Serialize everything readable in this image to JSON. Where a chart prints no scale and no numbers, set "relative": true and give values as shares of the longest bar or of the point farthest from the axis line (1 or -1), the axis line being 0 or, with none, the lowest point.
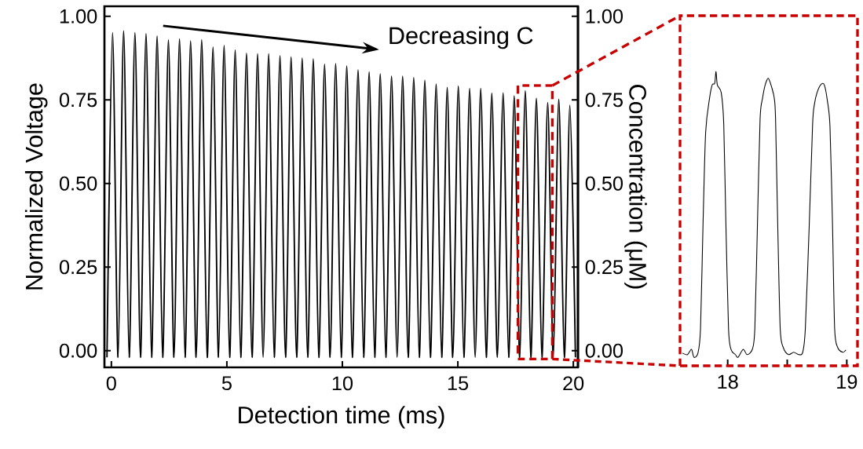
{
  "chart_data": [
    {
      "type": "line",
      "xlabel": "Detection time (ms)",
      "ylabel": "Normalized Voltage",
      "y2label": "Concentration (μM)",
      "annotations": [
        "Decreasing C"
      ],
      "xlim": [
        -0.3,
        20.2
      ],
      "ylim": [
        -0.05,
        1.03
      ],
      "y2lim": [
        -0.05,
        1.03
      ],
      "xticks": [
        0,
        5,
        10,
        15,
        20
      ],
      "yticks": [
        {
          "value": 0,
          "label": "0.00"
        },
        {
          "value": 0.25,
          "label": "0.25"
        },
        {
          "value": 0.5,
          "label": "0.50"
        },
        {
          "value": 0.75,
          "label": "0.75"
        },
        {
          "value": 1,
          "label": "1.00"
        }
      ],
      "y2ticks": [
        {
          "value": 0,
          "label": "0.00"
        },
        {
          "value": 0.25,
          "label": "0.25"
        },
        {
          "value": 0.5,
          "label": "0.50"
        },
        {
          "value": 0.75,
          "label": "0.75"
        },
        {
          "value": 1,
          "label": "1.00"
        }
      ],
      "series": [
        {
          "color": "#000000",
          "x": [
            -0.19,
            0.05,
            0.29,
            0.53,
            0.77,
            1.02,
            1.26,
            1.5,
            1.74,
            1.98,
            2.22,
            2.47,
            2.71,
            2.95,
            3.19,
            3.43,
            3.67,
            3.91,
            4.15,
            4.4,
            4.64,
            4.88,
            5.12,
            5.36,
            5.6,
            5.85,
            6.09,
            6.33,
            6.57,
            6.81,
            7.05,
            7.3,
            7.54,
            7.78,
            8.02,
            8.26,
            8.5,
            8.74,
            8.98,
            9.23,
            9.47,
            9.71,
            9.95,
            10.19,
            10.43,
            10.68,
            10.92,
            11.16,
            11.4,
            11.64,
            11.88,
            12.13,
            12.37,
            12.61,
            12.85,
            13.09,
            13.33,
            13.57,
            13.81,
            14.06,
            14.3,
            14.54,
            14.78,
            15.02,
            15.26,
            15.51,
            15.75,
            15.99,
            16.23,
            16.47,
            16.71,
            16.96,
            17.2,
            17.44,
            17.68,
            17.92,
            18.16,
            18.4,
            18.64,
            18.89,
            19.13,
            19.37,
            19.61,
            19.85,
            20.09
          ],
          "values": [
            -0.02,
            0.951,
            -0.02,
            0.956,
            -0.02,
            0.951,
            -0.02,
            0.948,
            -0.02,
            0.941,
            -0.02,
            0.929,
            -0.02,
            0.932,
            -0.02,
            0.926,
            -0.02,
            0.93,
            -0.02,
            0.908,
            -0.02,
            0.913,
            -0.02,
            0.899,
            -0.02,
            0.89,
            -0.02,
            0.888,
            -0.02,
            0.888,
            -0.02,
            0.882,
            -0.02,
            0.879,
            -0.02,
            0.875,
            -0.02,
            0.873,
            -0.02,
            0.857,
            -0.02,
            0.859,
            -0.02,
            0.852,
            -0.02,
            0.84,
            -0.02,
            0.834,
            -0.02,
            0.828,
            -0.02,
            0.821,
            -0.02,
            0.821,
            -0.02,
            0.817,
            -0.02,
            0.809,
            -0.02,
            0.797,
            -0.02,
            0.787,
            -0.02,
            0.791,
            -0.02,
            0.784,
            -0.02,
            0.784,
            -0.02,
            0.77,
            -0.02,
            0.771,
            -0.02,
            0.762,
            -0.02,
            0.777,
            -0.02,
            0.755,
            -0.02,
            0.742,
            -0.02,
            0.752,
            -0.02,
            0.734,
            -0.02
          ]
        }
      ]
    },
    {
      "type": "line",
      "relative": true,
      "xlim": [
        17.6,
        19.09
      ],
      "xticks": [
        18,
        {
          "value": 18.5,
          "label": null
        },
        19
      ],
      "series": [
        {
          "color": "#000000",
          "x": [
            17.62,
            17.663,
            17.696,
            17.717,
            17.75,
            17.772,
            17.793,
            17.815,
            17.848,
            17.87,
            17.891,
            17.902,
            17.913,
            17.946,
            17.967,
            17.985,
            18.007,
            18.028,
            18.065,
            18.087,
            18.13,
            18.163,
            18.207,
            18.228,
            18.25,
            18.272,
            18.293,
            18.315,
            18.341,
            18.37,
            18.391,
            18.402,
            18.42,
            18.441,
            18.467,
            18.511,
            18.554,
            18.598,
            18.63,
            18.652,
            18.685,
            18.713,
            18.728,
            18.75,
            18.783,
            18.811,
            18.837,
            18.859,
            18.88,
            18.898,
            18.924,
            18.967,
            18.993
          ],
          "values": [
            0.043,
            0.038,
            0.056,
            0.029,
            0.043,
            0.127,
            0.482,
            0.794,
            0.91,
            0.955,
            0.96,
            1,
            0.955,
            0.928,
            0.821,
            0.482,
            0.127,
            0.056,
            0.038,
            0.029,
            0.056,
            0.038,
            0.056,
            0.127,
            0.482,
            0.839,
            0.91,
            0.955,
            0.977,
            0.946,
            0.91,
            0.839,
            0.482,
            0.127,
            0.062,
            0.038,
            0.046,
            0.038,
            0.046,
            0.127,
            0.482,
            0.821,
            0.888,
            0.928,
            0.956,
            0.955,
            0.901,
            0.812,
            0.482,
            0.127,
            0.062,
            0.046,
            0.054
          ]
        }
      ]
    }
  ]
}
